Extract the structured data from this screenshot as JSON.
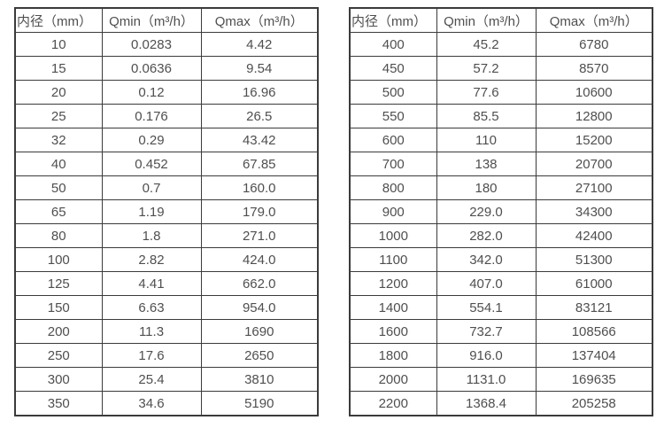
{
  "page": {
    "background": "#ffffff",
    "border_color": "#3b3b3b",
    "text_color": "#4f4f4f"
  },
  "tables": [
    {
      "name": "flow-table-small-diameters",
      "headers": [
        "内径（mm）",
        "Qmin（m³/h）",
        "Qmax（m³/h）"
      ],
      "rows": [
        [
          "10",
          "0.0283",
          "4.42"
        ],
        [
          "15",
          "0.0636",
          "9.54"
        ],
        [
          "20",
          "0.12",
          "16.96"
        ],
        [
          "25",
          "0.176",
          "26.5"
        ],
        [
          "32",
          "0.29",
          "43.42"
        ],
        [
          "40",
          "0.452",
          "67.85"
        ],
        [
          "50",
          "0.7",
          "160.0"
        ],
        [
          "65",
          "1.19",
          "179.0"
        ],
        [
          "80",
          "1.8",
          "271.0"
        ],
        [
          "100",
          "2.82",
          "424.0"
        ],
        [
          "125",
          "4.41",
          "662.0"
        ],
        [
          "150",
          "6.63",
          "954.0"
        ],
        [
          "200",
          "11.3",
          "1690"
        ],
        [
          "250",
          "17.6",
          "2650"
        ],
        [
          "300",
          "25.4",
          "3810"
        ],
        [
          "350",
          "34.6",
          "5190"
        ]
      ]
    },
    {
      "name": "flow-table-large-diameters",
      "headers": [
        "内径（mm）",
        "Qmin（m³/h）",
        "Qmax（m³/h）"
      ],
      "rows": [
        [
          "400",
          "45.2",
          "6780"
        ],
        [
          "450",
          "57.2",
          "8570"
        ],
        [
          "500",
          "77.6",
          "10600"
        ],
        [
          "550",
          "85.5",
          "12800"
        ],
        [
          "600",
          "110",
          "15200"
        ],
        [
          "700",
          "138",
          "20700"
        ],
        [
          "800",
          "180",
          "27100"
        ],
        [
          "900",
          "229.0",
          "34300"
        ],
        [
          "1000",
          "282.0",
          "42400"
        ],
        [
          "1100",
          "342.0",
          "51300"
        ],
        [
          "1200",
          "407.0",
          "61000"
        ],
        [
          "1400",
          "554.1",
          "83121"
        ],
        [
          "1600",
          "732.7",
          "108566"
        ],
        [
          "1800",
          "916.0",
          "137404"
        ],
        [
          "2000",
          "1131.0",
          "169635"
        ],
        [
          "2200",
          "1368.4",
          "205258"
        ]
      ]
    }
  ]
}
